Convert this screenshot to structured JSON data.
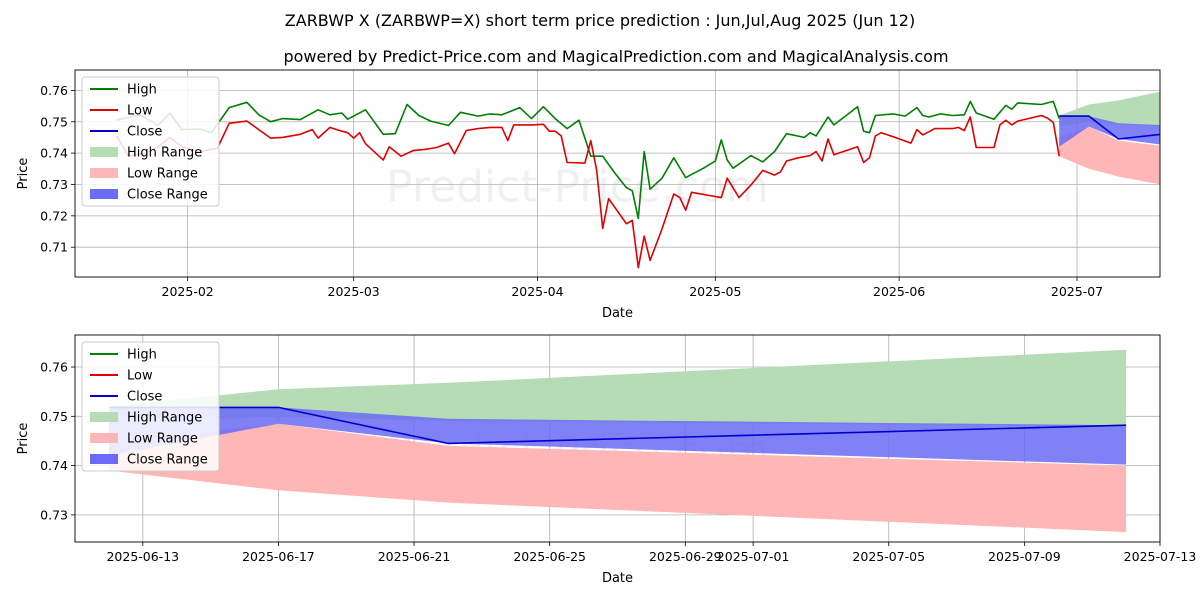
{
  "title": "ZARBWP X (ZARBWP=X) short term price prediction : Jun,Jul,Aug 2025 (Jun 12)",
  "subtitle": "powered by Predict-Price.com and MagicalPrediction.com and MagicalAnalysis.com",
  "watermark": "Predict-Price.com",
  "colors": {
    "high": "#008000",
    "low": "#e00000",
    "close": "#0000cc",
    "high_range": "#b6dcb6",
    "low_range": "#ffb6b6",
    "close_range": "#6b6bf5",
    "grid": "#b0b0b0"
  },
  "chart_data": [
    {
      "type": "line",
      "xlabel": "Date",
      "ylabel": "Price",
      "xlim": [
        "2025-01-13",
        "2025-07-15"
      ],
      "ylim": [
        0.7005,
        0.7665
      ],
      "yticks": [
        0.71,
        0.72,
        0.73,
        0.74,
        0.75,
        0.76
      ],
      "xticks": [
        "2025-02",
        "2025-03",
        "2025-04",
        "2025-05",
        "2025-06",
        "2025-07"
      ],
      "xtick_dates": [
        "2025-02-01",
        "2025-03-01",
        "2025-04-01",
        "2025-05-01",
        "2025-06-01",
        "2025-07-01"
      ],
      "grid": true,
      "legend_position": "top-left",
      "legend": [
        "High",
        "Low",
        "Close",
        "High Range",
        "Low Range",
        "Close Range"
      ],
      "series": [
        {
          "name": "High",
          "points": [
            [
              "2025-01-20",
              0.7505
            ],
            [
              "2025-01-24",
              0.7522
            ],
            [
              "2025-01-27",
              0.7488
            ],
            [
              "2025-01-29",
              0.7528
            ],
            [
              "2025-01-31",
              0.7475
            ],
            [
              "2025-02-03",
              0.7477
            ],
            [
              "2025-02-05",
              0.7465
            ],
            [
              "2025-02-08",
              0.7545
            ],
            [
              "2025-02-11",
              0.7562
            ],
            [
              "2025-02-13",
              0.7522
            ],
            [
              "2025-02-15",
              0.75
            ],
            [
              "2025-02-17",
              0.751
            ],
            [
              "2025-02-20",
              0.7507
            ],
            [
              "2025-02-23",
              0.7538
            ],
            [
              "2025-02-25",
              0.7522
            ],
            [
              "2025-02-27",
              0.7528
            ],
            [
              "2025-02-28",
              0.7508
            ],
            [
              "2025-03-03",
              0.7538
            ],
            [
              "2025-03-06",
              0.746
            ],
            [
              "2025-03-08",
              0.7462
            ],
            [
              "2025-03-10",
              0.7555
            ],
            [
              "2025-03-12",
              0.752
            ],
            [
              "2025-03-14",
              0.7502
            ],
            [
              "2025-03-17",
              0.7488
            ],
            [
              "2025-03-19",
              0.753
            ],
            [
              "2025-03-22",
              0.7518
            ],
            [
              "2025-03-24",
              0.7525
            ],
            [
              "2025-03-26",
              0.7522
            ],
            [
              "2025-03-29",
              0.7545
            ],
            [
              "2025-03-31",
              0.751
            ],
            [
              "2025-04-02",
              0.7548
            ],
            [
              "2025-04-04",
              0.751
            ],
            [
              "2025-04-06",
              0.7478
            ],
            [
              "2025-04-08",
              0.7505
            ],
            [
              "2025-04-10",
              0.739
            ],
            [
              "2025-04-12",
              0.739
            ],
            [
              "2025-04-14",
              0.7338
            ],
            [
              "2025-04-16",
              0.729
            ],
            [
              "2025-04-17",
              0.728
            ],
            [
              "2025-04-18",
              0.7192
            ],
            [
              "2025-04-19",
              0.7405
            ],
            [
              "2025-04-20",
              0.7285
            ],
            [
              "2025-04-22",
              0.732
            ],
            [
              "2025-04-24",
              0.7385
            ],
            [
              "2025-04-26",
              0.7322
            ],
            [
              "2025-04-29",
              0.7352
            ],
            [
              "2025-05-01",
              0.7375
            ],
            [
              "2025-05-02",
              0.7442
            ],
            [
              "2025-05-03",
              0.7378
            ],
            [
              "2025-05-04",
              0.7352
            ],
            [
              "2025-05-07",
              0.7392
            ],
            [
              "2025-05-09",
              0.7372
            ],
            [
              "2025-05-11",
              0.7405
            ],
            [
              "2025-05-13",
              0.7462
            ],
            [
              "2025-05-16",
              0.745
            ],
            [
              "2025-05-17",
              0.7465
            ],
            [
              "2025-05-18",
              0.7455
            ],
            [
              "2025-05-20",
              0.7515
            ],
            [
              "2025-05-21",
              0.749
            ],
            [
              "2025-05-25",
              0.7548
            ],
            [
              "2025-05-26",
              0.747
            ],
            [
              "2025-05-27",
              0.7465
            ],
            [
              "2025-05-28",
              0.752
            ],
            [
              "2025-05-31",
              0.7525
            ],
            [
              "2025-06-02",
              0.7518
            ],
            [
              "2025-06-04",
              0.7545
            ],
            [
              "2025-06-05",
              0.752
            ],
            [
              "2025-06-06",
              0.7515
            ],
            [
              "2025-06-08",
              0.7525
            ],
            [
              "2025-06-10",
              0.752
            ],
            [
              "2025-06-12",
              0.7522
            ],
            [
              "2025-06-13",
              0.7565
            ],
            [
              "2025-06-14",
              0.7528
            ],
            [
              "2025-06-17",
              0.7508
            ],
            [
              "2025-06-19",
              0.7552
            ],
            [
              "2025-06-20",
              0.754
            ],
            [
              "2025-06-21",
              0.756
            ],
            [
              "2025-06-25",
              0.7555
            ],
            [
              "2025-06-27",
              0.7565
            ],
            [
              "2025-06-28",
              0.751
            ]
          ]
        },
        {
          "name": "Low",
          "points": [
            [
              "2025-01-20",
              0.7455
            ],
            [
              "2025-01-22",
              0.739
            ],
            [
              "2025-01-25",
              0.74
            ],
            [
              "2025-01-27",
              0.742
            ],
            [
              "2025-01-29",
              0.745
            ],
            [
              "2025-01-31",
              0.742
            ],
            [
              "2025-02-03",
              0.7405
            ],
            [
              "2025-02-06",
              0.7415
            ],
            [
              "2025-02-08",
              0.7495
            ],
            [
              "2025-02-11",
              0.7502
            ],
            [
              "2025-02-13",
              0.7475
            ],
            [
              "2025-02-15",
              0.7448
            ],
            [
              "2025-02-17",
              0.745
            ],
            [
              "2025-02-20",
              0.746
            ],
            [
              "2025-02-22",
              0.7475
            ],
            [
              "2025-02-23",
              0.7448
            ],
            [
              "2025-02-25",
              0.7482
            ],
            [
              "2025-02-27",
              0.747
            ],
            [
              "2025-02-28",
              0.7465
            ],
            [
              "2025-03-01",
              0.7448
            ],
            [
              "2025-03-02",
              0.7465
            ],
            [
              "2025-03-03",
              0.743
            ],
            [
              "2025-03-05",
              0.7395
            ],
            [
              "2025-03-06",
              0.7378
            ],
            [
              "2025-03-07",
              0.742
            ],
            [
              "2025-03-09",
              0.739
            ],
            [
              "2025-03-11",
              0.7408
            ],
            [
              "2025-03-13",
              0.7412
            ],
            [
              "2025-03-15",
              0.7418
            ],
            [
              "2025-03-17",
              0.7432
            ],
            [
              "2025-03-18",
              0.7398
            ],
            [
              "2025-03-20",
              0.7472
            ],
            [
              "2025-03-22",
              0.7478
            ],
            [
              "2025-03-24",
              0.7482
            ],
            [
              "2025-03-26",
              0.7482
            ],
            [
              "2025-03-27",
              0.744
            ],
            [
              "2025-03-28",
              0.749
            ],
            [
              "2025-03-31",
              0.749
            ],
            [
              "2025-04-02",
              0.7492
            ],
            [
              "2025-04-03",
              0.747
            ],
            [
              "2025-04-04",
              0.747
            ],
            [
              "2025-04-05",
              0.7455
            ],
            [
              "2025-04-06",
              0.737
            ],
            [
              "2025-04-09",
              0.7368
            ],
            [
              "2025-04-10",
              0.744
            ],
            [
              "2025-04-11",
              0.7345
            ],
            [
              "2025-04-12",
              0.716
            ],
            [
              "2025-04-13",
              0.7255
            ],
            [
              "2025-04-16",
              0.7175
            ],
            [
              "2025-04-17",
              0.7185
            ],
            [
              "2025-04-18",
              0.7035
            ],
            [
              "2025-04-19",
              0.7135
            ],
            [
              "2025-04-20",
              0.7058
            ],
            [
              "2025-04-22",
              0.7158
            ],
            [
              "2025-04-24",
              0.727
            ],
            [
              "2025-04-25",
              0.7258
            ],
            [
              "2025-04-26",
              0.7218
            ],
            [
              "2025-04-27",
              0.7275
            ],
            [
              "2025-04-30",
              0.7265
            ],
            [
              "2025-05-02",
              0.7258
            ],
            [
              "2025-05-03",
              0.732
            ],
            [
              "2025-05-05",
              0.7258
            ],
            [
              "2025-05-07",
              0.7298
            ],
            [
              "2025-05-09",
              0.7345
            ],
            [
              "2025-05-11",
              0.733
            ],
            [
              "2025-05-12",
              0.734
            ],
            [
              "2025-05-13",
              0.7375
            ],
            [
              "2025-05-15",
              0.7385
            ],
            [
              "2025-05-17",
              0.7392
            ],
            [
              "2025-05-18",
              0.7405
            ],
            [
              "2025-05-19",
              0.7375
            ],
            [
              "2025-05-20",
              0.7445
            ],
            [
              "2025-05-21",
              0.7395
            ],
            [
              "2025-05-25",
              0.742
            ],
            [
              "2025-05-26",
              0.737
            ],
            [
              "2025-05-27",
              0.7385
            ],
            [
              "2025-05-28",
              0.7455
            ],
            [
              "2025-05-29",
              0.7465
            ],
            [
              "2025-05-31",
              0.7452
            ],
            [
              "2025-06-03",
              0.7432
            ],
            [
              "2025-06-04",
              0.7475
            ],
            [
              "2025-06-05",
              0.7458
            ],
            [
              "2025-06-06",
              0.7468
            ],
            [
              "2025-06-07",
              0.7478
            ],
            [
              "2025-06-10",
              0.7478
            ],
            [
              "2025-06-11",
              0.7482
            ],
            [
              "2025-06-12",
              0.7472
            ],
            [
              "2025-06-13",
              0.7515
            ],
            [
              "2025-06-14",
              0.7418
            ],
            [
              "2025-06-17",
              0.7418
            ],
            [
              "2025-06-18",
              0.749
            ],
            [
              "2025-06-19",
              0.7505
            ],
            [
              "2025-06-20",
              0.749
            ],
            [
              "2025-06-21",
              0.7502
            ],
            [
              "2025-06-25",
              0.752
            ],
            [
              "2025-06-26",
              0.7512
            ],
            [
              "2025-06-27",
              0.7498
            ],
            [
              "2025-06-28",
              0.739
            ]
          ]
        },
        {
          "name": "Close",
          "points": [
            [
              "2025-06-28",
              0.7518
            ],
            [
              "2025-07-03",
              0.7518
            ],
            [
              "2025-07-08",
              0.7445
            ],
            [
              "2025-07-25",
              0.748
            ]
          ]
        }
      ],
      "ranges": [
        {
          "name": "High Range",
          "x": [
            "2025-06-28",
            "2025-07-03",
            "2025-07-08",
            "2025-07-25"
          ],
          "upper": [
            0.752,
            0.7555,
            0.7568,
            0.7635
          ],
          "lower": [
            0.7485,
            0.75,
            0.749,
            0.748
          ]
        },
        {
          "name": "Low Range",
          "x": [
            "2025-06-28",
            "2025-07-03",
            "2025-07-08",
            "2025-07-25"
          ],
          "upper": [
            0.745,
            0.7485,
            0.744,
            0.74
          ],
          "lower": [
            0.739,
            0.735,
            0.7325,
            0.7265
          ]
        },
        {
          "name": "Close Range",
          "x": [
            "2025-06-28",
            "2025-07-03",
            "2025-07-08",
            "2025-07-25"
          ],
          "upper": [
            0.7518,
            0.7518,
            0.7495,
            0.7482
          ],
          "lower": [
            0.742,
            0.7485,
            0.7445,
            0.7402
          ]
        }
      ]
    },
    {
      "type": "line",
      "xlabel": "Date",
      "ylabel": "Price",
      "xlim": [
        "2025-06-11",
        "2025-07-13"
      ],
      "ylim": [
        0.7245,
        0.7665
      ],
      "yticks": [
        0.73,
        0.74,
        0.75,
        0.76
      ],
      "xticks": [
        "2025-06-13",
        "2025-06-17",
        "2025-06-21",
        "2025-06-25",
        "2025-06-29",
        "2025-07-01",
        "2025-07-05",
        "2025-07-09",
        "2025-07-13"
      ],
      "xtick_dates": [
        "2025-06-13",
        "2025-06-17",
        "2025-06-21",
        "2025-06-25",
        "2025-06-29",
        "2025-07-01",
        "2025-07-05",
        "2025-07-09",
        "2025-07-13"
      ],
      "grid": true,
      "legend_position": "top-left",
      "legend": [
        "High",
        "Low",
        "Close",
        "High Range",
        "Low Range",
        "Close Range"
      ],
      "series": [
        {
          "name": "Close",
          "points": [
            [
              "2025-06-12",
              0.7518
            ],
            [
              "2025-06-17",
              0.7518
            ],
            [
              "2025-06-22",
              0.7445
            ],
            [
              "2025-07-12",
              0.7482
            ]
          ]
        }
      ],
      "ranges": [
        {
          "name": "High Range",
          "x": [
            "2025-06-12",
            "2025-06-17",
            "2025-06-22",
            "2025-07-12"
          ],
          "upper": [
            0.752,
            0.7555,
            0.7568,
            0.7635
          ],
          "lower": [
            0.7485,
            0.75,
            0.749,
            0.748
          ]
        },
        {
          "name": "Low Range",
          "x": [
            "2025-06-12",
            "2025-06-17",
            "2025-06-22",
            "2025-07-12"
          ],
          "upper": [
            0.745,
            0.7485,
            0.744,
            0.74
          ],
          "lower": [
            0.739,
            0.735,
            0.7325,
            0.7265
          ]
        },
        {
          "name": "Close Range",
          "x": [
            "2025-06-12",
            "2025-06-17",
            "2025-06-22",
            "2025-07-12"
          ],
          "upper": [
            0.7518,
            0.7518,
            0.7495,
            0.7482
          ],
          "lower": [
            0.742,
            0.7485,
            0.7445,
            0.7402
          ]
        }
      ]
    }
  ]
}
